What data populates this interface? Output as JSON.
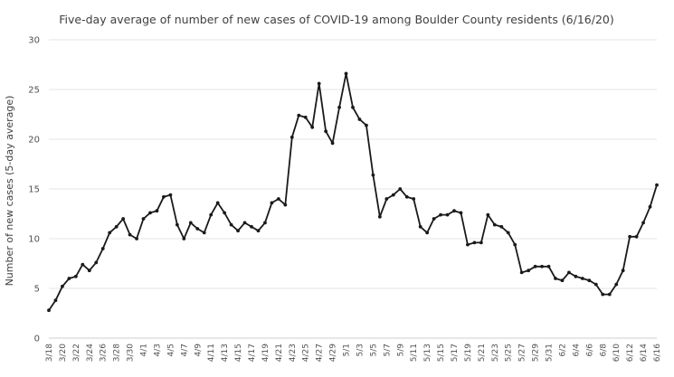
{
  "chart_data": {
    "type": "line",
    "title": "Five-day average of number of new cases of COVID-19 among Boulder County residents (6/16/20)",
    "ylabel": "Number of new cases (5-day average)",
    "xlabel": "",
    "ylim": [
      0,
      30
    ],
    "yticks": [
      0,
      5,
      10,
      15,
      20,
      25,
      30
    ],
    "grid": "horizontal",
    "legend": "none",
    "line_color": "#1a1a1a",
    "x_tick_labels": [
      "3/18",
      "3/20",
      "3/22",
      "3/24",
      "3/26",
      "3/28",
      "3/30",
      "4/1",
      "4/3",
      "4/5",
      "4/7",
      "4/9",
      "4/11",
      "4/13",
      "4/15",
      "4/17",
      "4/19",
      "4/21",
      "4/23",
      "4/25",
      "4/27",
      "4/29",
      "5/1",
      "5/3",
      "5/5",
      "5/7",
      "5/9",
      "5/11",
      "5/13",
      "5/15",
      "5/17",
      "5/19",
      "5/21",
      "5/23",
      "5/25",
      "5/27",
      "5/29",
      "5/31",
      "6/2",
      "6/4",
      "6/6",
      "6/8",
      "6/10",
      "6/12",
      "6/14",
      "6/16"
    ],
    "series": [
      {
        "values": [
          2.8,
          3.8,
          5.2,
          6.0,
          6.2,
          7.4,
          6.8,
          7.6,
          9.0,
          10.6,
          11.2,
          12.0,
          10.4,
          10.0,
          12.0,
          12.6,
          12.8,
          14.2,
          14.4,
          11.4,
          10.0,
          11.6,
          11.0,
          10.6,
          12.4,
          13.6,
          12.6,
          11.4,
          10.8,
          11.6,
          11.2,
          10.8,
          11.6,
          13.6,
          14.0,
          13.4,
          20.2,
          22.4,
          22.2,
          21.2,
          25.6,
          20.8,
          19.6,
          23.2,
          26.6,
          23.2,
          22.0,
          21.4,
          16.4,
          12.2,
          14.0,
          14.4,
          15.0,
          14.2,
          14.0,
          11.2,
          10.6,
          12.0,
          12.4,
          12.4,
          12.8,
          12.6,
          9.4,
          9.6,
          9.6,
          12.4,
          11.4,
          11.2,
          10.6,
          9.4,
          6.6,
          6.8,
          7.2,
          7.2,
          7.2,
          6.0,
          5.8,
          6.6,
          6.2,
          6.0,
          5.8,
          5.4,
          4.4,
          4.4,
          5.4,
          6.8,
          10.2,
          10.2,
          11.6,
          13.2,
          15.4
        ]
      }
    ]
  }
}
